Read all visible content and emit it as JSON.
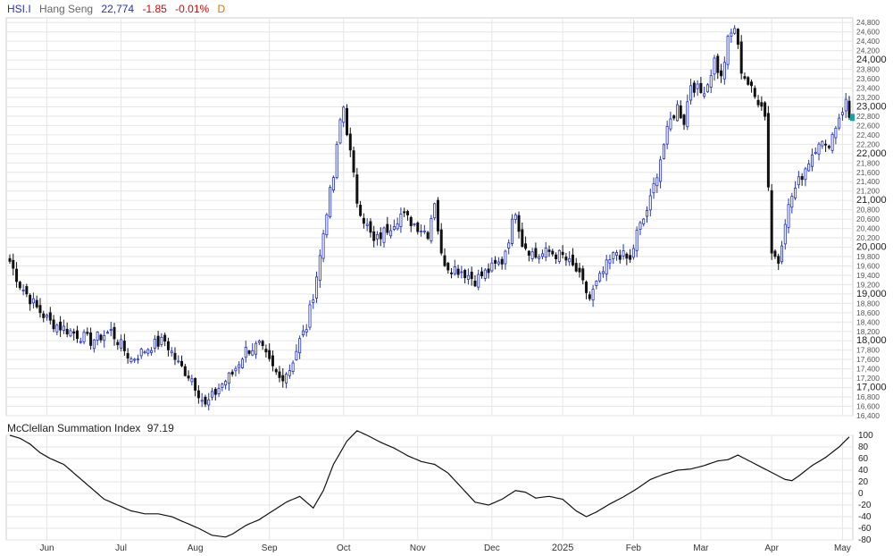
{
  "header": {
    "symbol": "HSI.I",
    "name": "Hang Seng",
    "last": "22,774",
    "change": "-1.85",
    "change_pct": "-0.01%",
    "period": "D"
  },
  "indicator": {
    "name": "McClellan Summation Index",
    "value": "97.19"
  },
  "colors": {
    "up": "#2030d0",
    "down": "#111111",
    "line": "#111111",
    "grid": "#e6e6e6",
    "symbol": "#2030d0",
    "change": "#e00000",
    "period": "#e07000",
    "last_marker": "#18a0a8"
  },
  "chart_data": [
    {
      "type": "candlestick",
      "ylim": [
        16400,
        24900
      ],
      "y_ticks": [
        16400,
        16600,
        16800,
        17000,
        17200,
        17400,
        17600,
        17800,
        18000,
        18200,
        18400,
        18600,
        18800,
        19000,
        19200,
        19400,
        19600,
        19800,
        20000,
        20200,
        20400,
        20600,
        20800,
        21000,
        21200,
        21400,
        21600,
        21800,
        22000,
        22200,
        22400,
        22600,
        22800,
        23000,
        23200,
        23400,
        23600,
        23800,
        24000,
        24200,
        24400,
        24600,
        24800
      ],
      "y_major_ticks": [
        17000,
        18000,
        19000,
        20000,
        21000,
        22000,
        23000,
        24000
      ],
      "x_tick_labels": [
        "Jun",
        "Jul",
        "Aug",
        "Sep",
        "Oct",
        "Nov",
        "Dec",
        "2025",
        "Feb",
        "Mar",
        "Apr",
        "May"
      ],
      "grid": true,
      "anchors": [
        [
          0,
          19700
        ],
        [
          3,
          19200
        ],
        [
          8,
          18700
        ],
        [
          12,
          18400
        ],
        [
          18,
          18200
        ],
        [
          24,
          18000
        ],
        [
          30,
          18200
        ],
        [
          36,
          17600
        ],
        [
          42,
          17900
        ],
        [
          46,
          18000
        ],
        [
          50,
          17500
        ],
        [
          54,
          17200
        ],
        [
          56,
          16900
        ],
        [
          58,
          16600
        ],
        [
          62,
          17000
        ],
        [
          66,
          17300
        ],
        [
          70,
          17800
        ],
        [
          74,
          17900
        ],
        [
          78,
          17400
        ],
        [
          80,
          17200
        ],
        [
          83,
          17400
        ],
        [
          86,
          18000
        ],
        [
          88,
          18300
        ],
        [
          90,
          19000
        ],
        [
          92,
          19800
        ],
        [
          94,
          20800
        ],
        [
          96,
          21500
        ],
        [
          98,
          22700
        ],
        [
          99,
          23000
        ],
        [
          101,
          22000
        ],
        [
          103,
          21000
        ],
        [
          105,
          20600
        ],
        [
          108,
          20100
        ],
        [
          112,
          20400
        ],
        [
          116,
          20700
        ],
        [
          120,
          20500
        ],
        [
          124,
          20300
        ],
        [
          126,
          21000
        ],
        [
          128,
          19800
        ],
        [
          130,
          19600
        ],
        [
          134,
          19500
        ],
        [
          138,
          19300
        ],
        [
          142,
          19500
        ],
        [
          146,
          19700
        ],
        [
          148,
          20200
        ],
        [
          150,
          20800
        ],
        [
          152,
          20100
        ],
        [
          156,
          19800
        ],
        [
          160,
          19900
        ],
        [
          164,
          19800
        ],
        [
          168,
          19500
        ],
        [
          172,
          18900
        ],
        [
          174,
          19200
        ],
        [
          177,
          19600
        ],
        [
          180,
          19900
        ],
        [
          184,
          19700
        ],
        [
          186,
          20300
        ],
        [
          188,
          20600
        ],
        [
          190,
          21000
        ],
        [
          192,
          21600
        ],
        [
          194,
          22200
        ],
        [
          196,
          22700
        ],
        [
          198,
          23000
        ],
        [
          200,
          22700
        ],
        [
          202,
          23500
        ],
        [
          205,
          23300
        ],
        [
          207,
          23500
        ],
        [
          209,
          24000
        ],
        [
          211,
          23600
        ],
        [
          213,
          24400
        ],
        [
          215,
          24700
        ],
        [
          217,
          23800
        ],
        [
          219,
          23500
        ],
        [
          221,
          23200
        ],
        [
          223,
          23100
        ],
        [
          224,
          22800
        ],
        [
          226,
          19900
        ],
        [
          228,
          19700
        ],
        [
          230,
          20600
        ],
        [
          232,
          21100
        ],
        [
          234,
          21400
        ],
        [
          236,
          21700
        ],
        [
          238,
          22000
        ],
        [
          240,
          22300
        ],
        [
          242,
          22100
        ],
        [
          244,
          22400
        ],
        [
          246,
          22800
        ],
        [
          248,
          23100
        ],
        [
          249,
          22774
        ]
      ],
      "last": 22774
    },
    {
      "type": "line",
      "name": "McClellan Summation Index",
      "ylim": [
        -80,
        100
      ],
      "y_ticks": [
        100,
        80,
        60,
        40,
        20,
        0,
        -20,
        -40,
        -60,
        -80
      ],
      "grid": true,
      "anchors": [
        [
          0,
          100
        ],
        [
          3,
          95
        ],
        [
          6,
          85
        ],
        [
          9,
          70
        ],
        [
          12,
          60
        ],
        [
          16,
          50
        ],
        [
          20,
          30
        ],
        [
          24,
          10
        ],
        [
          28,
          -10
        ],
        [
          32,
          -20
        ],
        [
          36,
          -30
        ],
        [
          40,
          -35
        ],
        [
          44,
          -35
        ],
        [
          48,
          -40
        ],
        [
          52,
          -50
        ],
        [
          56,
          -60
        ],
        [
          60,
          -72
        ],
        [
          64,
          -75
        ],
        [
          66,
          -70
        ],
        [
          70,
          -55
        ],
        [
          74,
          -45
        ],
        [
          78,
          -30
        ],
        [
          82,
          -15
        ],
        [
          86,
          -5
        ],
        [
          90,
          -25
        ],
        [
          93,
          5
        ],
        [
          96,
          50
        ],
        [
          100,
          90
        ],
        [
          103,
          108
        ],
        [
          106,
          100
        ],
        [
          110,
          88
        ],
        [
          114,
          78
        ],
        [
          118,
          65
        ],
        [
          122,
          55
        ],
        [
          126,
          50
        ],
        [
          130,
          35
        ],
        [
          134,
          10
        ],
        [
          138,
          -15
        ],
        [
          142,
          -20
        ],
        [
          146,
          -10
        ],
        [
          150,
          5
        ],
        [
          153,
          2
        ],
        [
          156,
          -8
        ],
        [
          160,
          -5
        ],
        [
          164,
          -10
        ],
        [
          168,
          -30
        ],
        [
          171,
          -40
        ],
        [
          174,
          -32
        ],
        [
          178,
          -18
        ],
        [
          182,
          -6
        ],
        [
          186,
          8
        ],
        [
          190,
          24
        ],
        [
          194,
          33
        ],
        [
          198,
          40
        ],
        [
          202,
          42
        ],
        [
          206,
          48
        ],
        [
          210,
          56
        ],
        [
          213,
          58
        ],
        [
          216,
          66
        ],
        [
          220,
          54
        ],
        [
          224,
          42
        ],
        [
          228,
          30
        ],
        [
          230,
          24
        ],
        [
          232,
          22
        ],
        [
          234,
          30
        ],
        [
          238,
          48
        ],
        [
          242,
          62
        ],
        [
          246,
          80
        ],
        [
          249,
          97.19
        ]
      ],
      "last": 97.19
    }
  ]
}
